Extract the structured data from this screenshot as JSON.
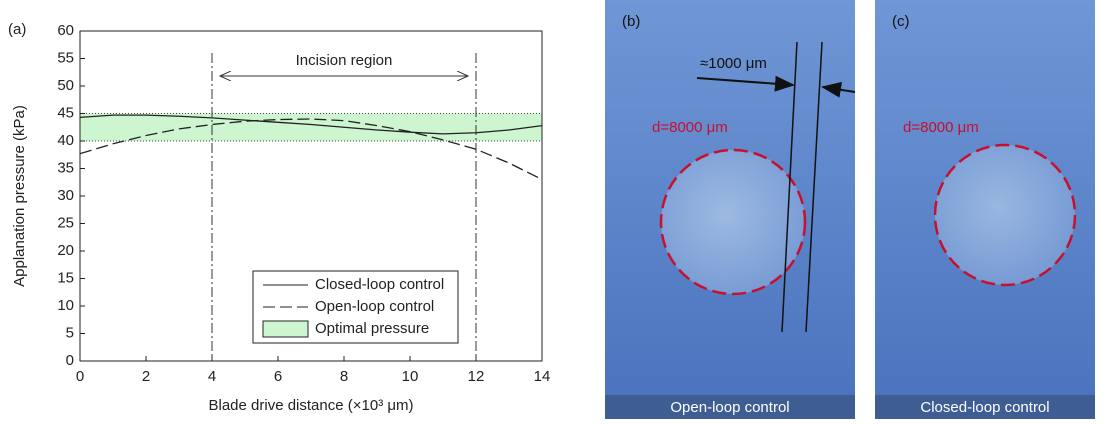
{
  "chart_data": {
    "type": "line",
    "panel_label": "(a)",
    "x_label": "Blade drive distance (×10³ μm)",
    "y_label": "Applanation pressure (kPa)",
    "x": [
      0,
      1,
      2,
      3,
      4,
      5,
      6,
      7,
      8,
      9,
      10,
      11,
      12,
      13,
      14
    ],
    "series": [
      {
        "name": "Closed-loop control",
        "color": "#222222",
        "dash": "solid",
        "values": [
          44.3,
          44.7,
          44.7,
          44.5,
          44.2,
          43.8,
          43.4,
          43,
          42.5,
          42,
          41.6,
          41.3,
          41.5,
          42,
          42.8
        ]
      },
      {
        "name": "Open-loop control",
        "color": "#222222",
        "dash": "dashed",
        "values": [
          37.7,
          39.5,
          41,
          42.2,
          43,
          43.6,
          43.9,
          44,
          43.7,
          42.8,
          41.7,
          40.2,
          38.5,
          36,
          33
        ]
      }
    ],
    "bands": [
      {
        "name": "Optimal pressure",
        "range": [
          40,
          45
        ],
        "color": "#ccf5d0"
      }
    ],
    "vlines": [
      4,
      12
    ],
    "annotation": "Incision region",
    "xlim": [
      0,
      14
    ],
    "xticks": [
      0,
      2,
      4,
      6,
      8,
      10,
      12,
      14
    ],
    "ylim": [
      0,
      60
    ],
    "yticks": [
      0,
      5,
      10,
      15,
      20,
      25,
      30,
      35,
      40,
      45,
      50,
      55,
      60
    ],
    "legend": "lower right"
  },
  "panels": [
    {
      "label": "(b)",
      "width_label": "≈1000 μm",
      "diameter_label": "d=8000 μm",
      "caption": "Open-loop control"
    },
    {
      "label": "(c)",
      "diameter_label": "d=8000 μm",
      "caption": "Closed-loop control"
    }
  ]
}
